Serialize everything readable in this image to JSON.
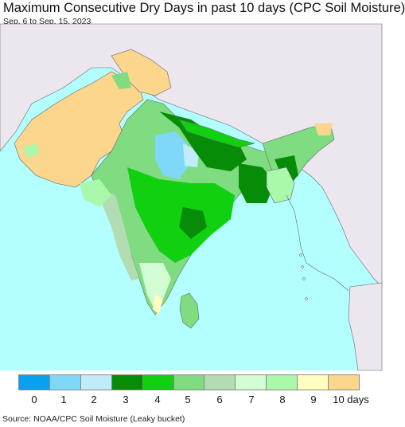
{
  "title": "Maximum Consecutive Dry Days in past 10 days (CPC Soil Moisture)",
  "subtitle": "Sep. 6 to Sep. 15, 2023",
  "source": "Source: NOAA/CPC Soil Moisture (Leaky bucket)",
  "colors": {
    "ocean": "#b3ffff",
    "foreign_land": "#ece6ee",
    "border": "#666666"
  },
  "legend": {
    "items": [
      {
        "label": "0",
        "color": "#0aa0f0"
      },
      {
        "label": "1",
        "color": "#80d8f8"
      },
      {
        "label": "2",
        "color": "#c0ecf8"
      },
      {
        "label": "3",
        "color": "#078c07"
      },
      {
        "label": "4",
        "color": "#10d010"
      },
      {
        "label": "5",
        "color": "#80dc80"
      },
      {
        "label": "6",
        "color": "#b2dcb2"
      },
      {
        "label": "7",
        "color": "#d2fcd2"
      },
      {
        "label": "8",
        "color": "#aaf8aa"
      },
      {
        "label": "9",
        "color": "#ffffc0"
      },
      {
        "label": "10 days",
        "color": "#fcd68c"
      }
    ]
  }
}
